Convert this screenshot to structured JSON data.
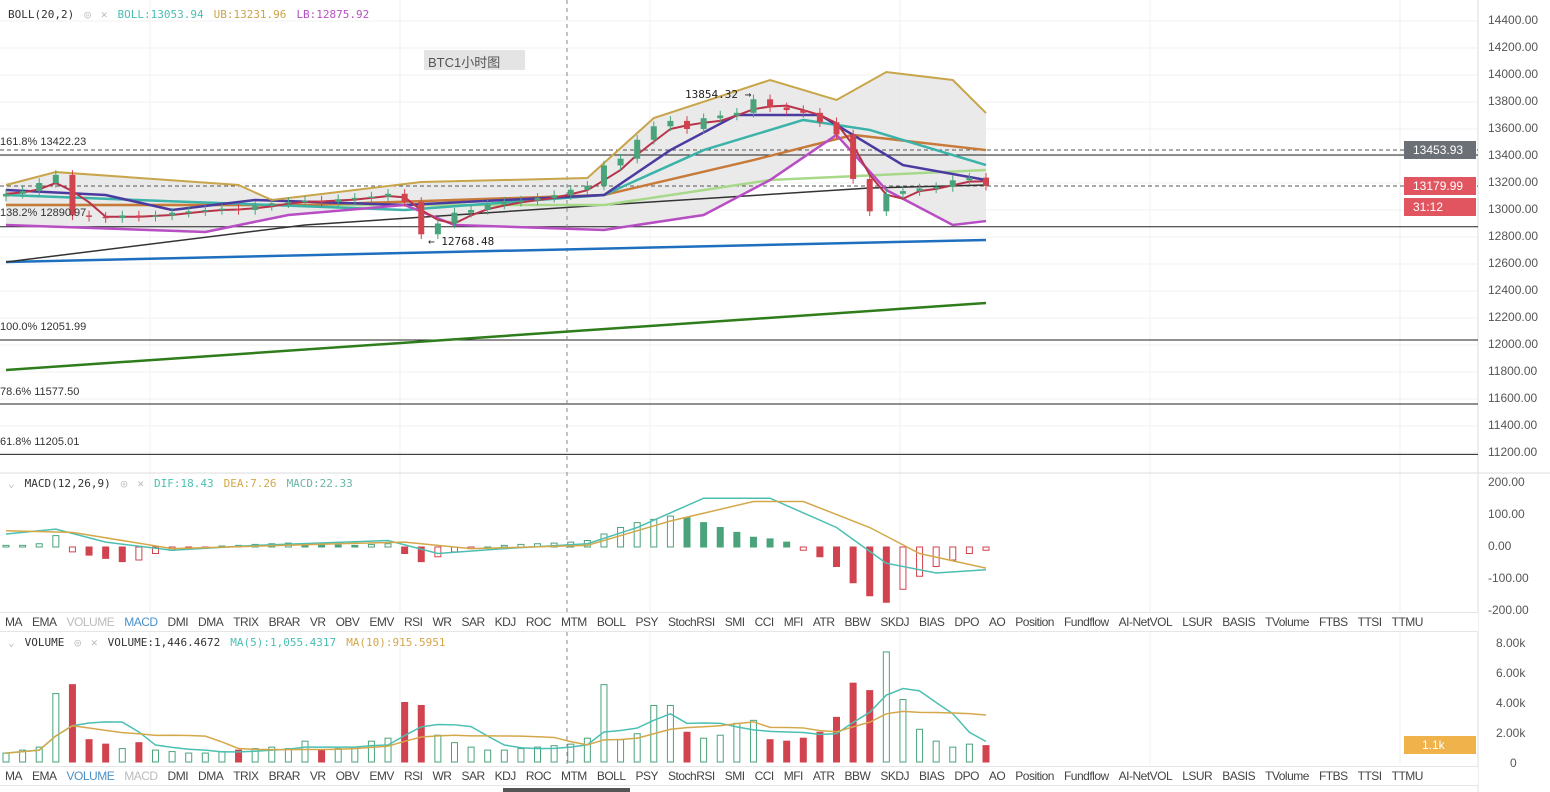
{
  "main_legend": {
    "name": "BOLL(20,2)",
    "boll": "BOLL:13053.94",
    "ub": "UB:13231.96",
    "lb": "LB:12875.92"
  },
  "chart_title": "BTC1小时图",
  "annotations": {
    "high": "13854.32 →",
    "low": "← 12768.48"
  },
  "fib_levels": [
    {
      "label": "161.8% 13422.23",
      "price": 13422.23
    },
    {
      "label": "138.2% 12890.97",
      "price": 12890.97
    },
    {
      "label": "100.0% 12051.99",
      "price": 12051.99
    },
    {
      "label": "78.6% 11577.50",
      "price": 11577.5
    },
    {
      "label": "61.8% 11205.01",
      "price": 11205.01
    }
  ],
  "price_axis": [
    "14400.00",
    "14200.00",
    "14000.00",
    "13800.00",
    "13600.00",
    "13400.00",
    "13200.00",
    "13000.00",
    "12800.00",
    "12600.00",
    "12400.00",
    "12200.00",
    "12000.00",
    "11800.00",
    "11600.00",
    "11400.00",
    "11200.00"
  ],
  "price_tags": {
    "line": "13453.93",
    "last": "13179.99",
    "countdown": "31:12"
  },
  "macd_legend": {
    "name": "MACD(12,26,9)",
    "dif": "DIF:18.43",
    "dea": "DEA:7.26",
    "macd": "MACD:22.33"
  },
  "macd_axis": [
    "200.00",
    "100.00",
    "0.00",
    "-100.00",
    "-200.00"
  ],
  "volume_legend": {
    "name": "VOLUME",
    "volume": "VOLUME:1,446.4672",
    "ma5": "MA(5):1,055.4317",
    "ma10": "MA(10):915.5951"
  },
  "volume_axis": [
    "8.00k",
    "6.00k",
    "4.00k",
    "2.00k",
    "0"
  ],
  "volume_tag": "1.1k",
  "indicator_tabs": [
    "MA",
    "EMA",
    "VOLUME",
    "MACD",
    "DMI",
    "DMA",
    "TRIX",
    "BRAR",
    "VR",
    "OBV",
    "EMV",
    "RSI",
    "WR",
    "SAR",
    "KDJ",
    "ROC",
    "MTM",
    "BOLL",
    "PSY",
    "StochRSI",
    "SMI",
    "CCI",
    "MFI",
    "ATR",
    "BBW",
    "SKDJ",
    "BIAS",
    "DPO",
    "AO",
    "Position",
    "Fundflow",
    "AI-NetVOL",
    "LSUR",
    "BASIS",
    "TVolume",
    "FTBS",
    "TTSI",
    "TTMU"
  ],
  "colors": {
    "up": "#4aa37a",
    "down": "#d1434f",
    "boll_upper": "#c9a54a",
    "boll_lower": "#b84ec4",
    "ma_blue": "#1f6fbf",
    "ma_green": "#2e7d1a",
    "dif": "#4bbfb2",
    "dea": "#d4a84a",
    "tag_grey": "#6b6f76",
    "tag_red": "#e0555f",
    "tag_orange": "#f0b24a"
  },
  "chart_data": {
    "type": "candlestick",
    "closes": [
      13120,
      13140,
      13200,
      13260,
      12960,
      12950,
      12940,
      12960,
      12950,
      12960,
      12980,
      12990,
      13000,
      13010,
      13000,
      13030,
      13050,
      13060,
      13070,
      13060,
      13080,
      13090,
      13100,
      13120,
      13060,
      12820,
      12900,
      12980,
      13000,
      13040,
      13060,
      13070,
      13090,
      13110,
      13150,
      13180,
      13330,
      13380,
      13520,
      13620,
      13660,
      13600,
      13680,
      13700,
      13720,
      13820,
      13760,
      13740,
      13720,
      13650,
      13560,
      13230,
      12990,
      13120,
      13140,
      13160,
      13170,
      13220,
      13240,
      13180
    ],
    "ma_lines": [
      {
        "color": "#1f6fbf",
        "points": [
          [
            0,
            12615
          ],
          [
            59,
            12778
          ]
        ]
      },
      {
        "color": "#2e7d1a",
        "points": [
          [
            0,
            11815
          ],
          [
            59,
            12311
          ]
        ]
      },
      {
        "color": "#333333",
        "points": [
          [
            0,
            12615
          ],
          [
            18,
            12889
          ],
          [
            36,
            13037
          ],
          [
            52,
            13163
          ],
          [
            59,
            13185
          ]
        ]
      },
      {
        "color": "#a8d88a",
        "points": [
          [
            0,
            13037
          ],
          [
            36,
            13037
          ],
          [
            46,
            13222
          ],
          [
            59,
            13296
          ]
        ]
      },
      {
        "color": "#c77a3a",
        "points": [
          [
            0,
            13037
          ],
          [
            18,
            13037
          ],
          [
            36,
            13111
          ],
          [
            45,
            13370
          ],
          [
            51,
            13556
          ],
          [
            59,
            13444
          ]
        ]
      },
      {
        "color": "#3bb3a8",
        "points": [
          [
            0,
            13111
          ],
          [
            24,
            13000
          ],
          [
            36,
            13111
          ],
          [
            42,
            13444
          ],
          [
            48,
            13667
          ],
          [
            52,
            13593
          ],
          [
            59,
            13333
          ]
        ]
      },
      {
        "color": "#4b3aa0",
        "points": [
          [
            0,
            13148
          ],
          [
            6,
            13111
          ],
          [
            10,
            13000
          ],
          [
            15,
            13074
          ],
          [
            24,
            13037
          ],
          [
            36,
            13111
          ],
          [
            40,
            13444
          ],
          [
            44,
            13704
          ],
          [
            49,
            13704
          ],
          [
            54,
            13333
          ],
          [
            59,
            13222
          ]
        ]
      }
    ],
    "boll_upper": [
      [
        0,
        13185
      ],
      [
        3,
        13281
      ],
      [
        14,
        13185
      ],
      [
        16,
        13074
      ],
      [
        25,
        13207
      ],
      [
        35,
        13237
      ],
      [
        39,
        13681
      ],
      [
        46,
        13963
      ],
      [
        50,
        13815
      ],
      [
        53,
        14022
      ],
      [
        57,
        13963
      ],
      [
        59,
        13718
      ]
    ],
    "boll_lower": [
      [
        0,
        12889
      ],
      [
        12,
        12837
      ],
      [
        17,
        12963
      ],
      [
        24,
        13037
      ],
      [
        27,
        12889
      ],
      [
        36,
        12852
      ],
      [
        42,
        12963
      ],
      [
        46,
        13222
      ],
      [
        50,
        13556
      ],
      [
        53,
        13148
      ],
      [
        57,
        12889
      ],
      [
        59,
        12918
      ]
    ],
    "macd_hist": [
      5,
      5,
      10,
      35,
      -15,
      -25,
      -35,
      -45,
      -40,
      -20,
      -10,
      -5,
      -3,
      3,
      5,
      8,
      10,
      12,
      10,
      8,
      6,
      5,
      8,
      10,
      -20,
      -45,
      -30,
      -15,
      -5,
      0,
      5,
      8,
      10,
      12,
      15,
      20,
      40,
      60,
      75,
      85,
      95,
      90,
      75,
      60,
      45,
      30,
      25,
      15,
      -10,
      -30,
      -60,
      -110,
      -150,
      -170,
      -130,
      -90,
      -60,
      -40,
      -20,
      -10
    ],
    "dif": [
      [
        0,
        40
      ],
      [
        3,
        55
      ],
      [
        6,
        15
      ],
      [
        10,
        -10
      ],
      [
        15,
        5
      ],
      [
        23,
        20
      ],
      [
        26,
        -20
      ],
      [
        30,
        -5
      ],
      [
        35,
        10
      ],
      [
        38,
        60
      ],
      [
        42,
        150
      ],
      [
        46,
        150
      ],
      [
        50,
        60
      ],
      [
        53,
        -50
      ],
      [
        56,
        -80
      ],
      [
        59,
        -70
      ]
    ],
    "dea": [
      [
        0,
        50
      ],
      [
        4,
        45
      ],
      [
        10,
        -5
      ],
      [
        20,
        10
      ],
      [
        24,
        15
      ],
      [
        28,
        -5
      ],
      [
        35,
        5
      ],
      [
        40,
        80
      ],
      [
        45,
        140
      ],
      [
        48,
        140
      ],
      [
        52,
        60
      ],
      [
        55,
        -20
      ],
      [
        59,
        -65
      ]
    ],
    "volume": [
      0.6,
      0.8,
      1.0,
      4.6,
      5.2,
      1.5,
      1.2,
      0.9,
      1.3,
      0.8,
      0.7,
      0.6,
      0.6,
      0.7,
      0.8,
      0.9,
      1.0,
      0.9,
      1.4,
      0.8,
      0.9,
      1.0,
      1.4,
      1.6,
      4.0,
      3.8,
      1.8,
      1.3,
      1.0,
      0.8,
      0.8,
      0.9,
      1.0,
      1.1,
      1.2,
      1.6,
      5.2,
      1.5,
      1.9,
      3.8,
      3.8,
      2.0,
      1.6,
      1.8,
      2.6,
      2.8,
      1.5,
      1.4,
      1.6,
      2.0,
      3.0,
      5.3,
      4.8,
      7.4,
      4.2,
      2.2,
      1.4,
      1.0,
      1.2,
      1.1
    ]
  }
}
